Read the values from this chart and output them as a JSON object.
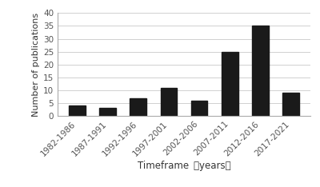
{
  "categories": [
    "1982-1986",
    "1987-1991",
    "1992-1996",
    "1997-2001",
    "2002-2006",
    "2007-2011",
    "2012-2016",
    "2017-2021"
  ],
  "values": [
    4,
    3,
    7,
    11,
    6,
    25,
    35,
    9
  ],
  "bar_color": "#1a1a1a",
  "xlabel": "Timeframe （years）",
  "ylabel": "Number of publications",
  "ylim": [
    0,
    40
  ],
  "yticks": [
    0,
    5,
    10,
    15,
    20,
    25,
    30,
    35,
    40
  ],
  "background_color": "#ffffff",
  "grid_color": "#d0d0d0",
  "xlabel_fontsize": 8.5,
  "ylabel_fontsize": 8,
  "tick_fontsize": 7.5
}
